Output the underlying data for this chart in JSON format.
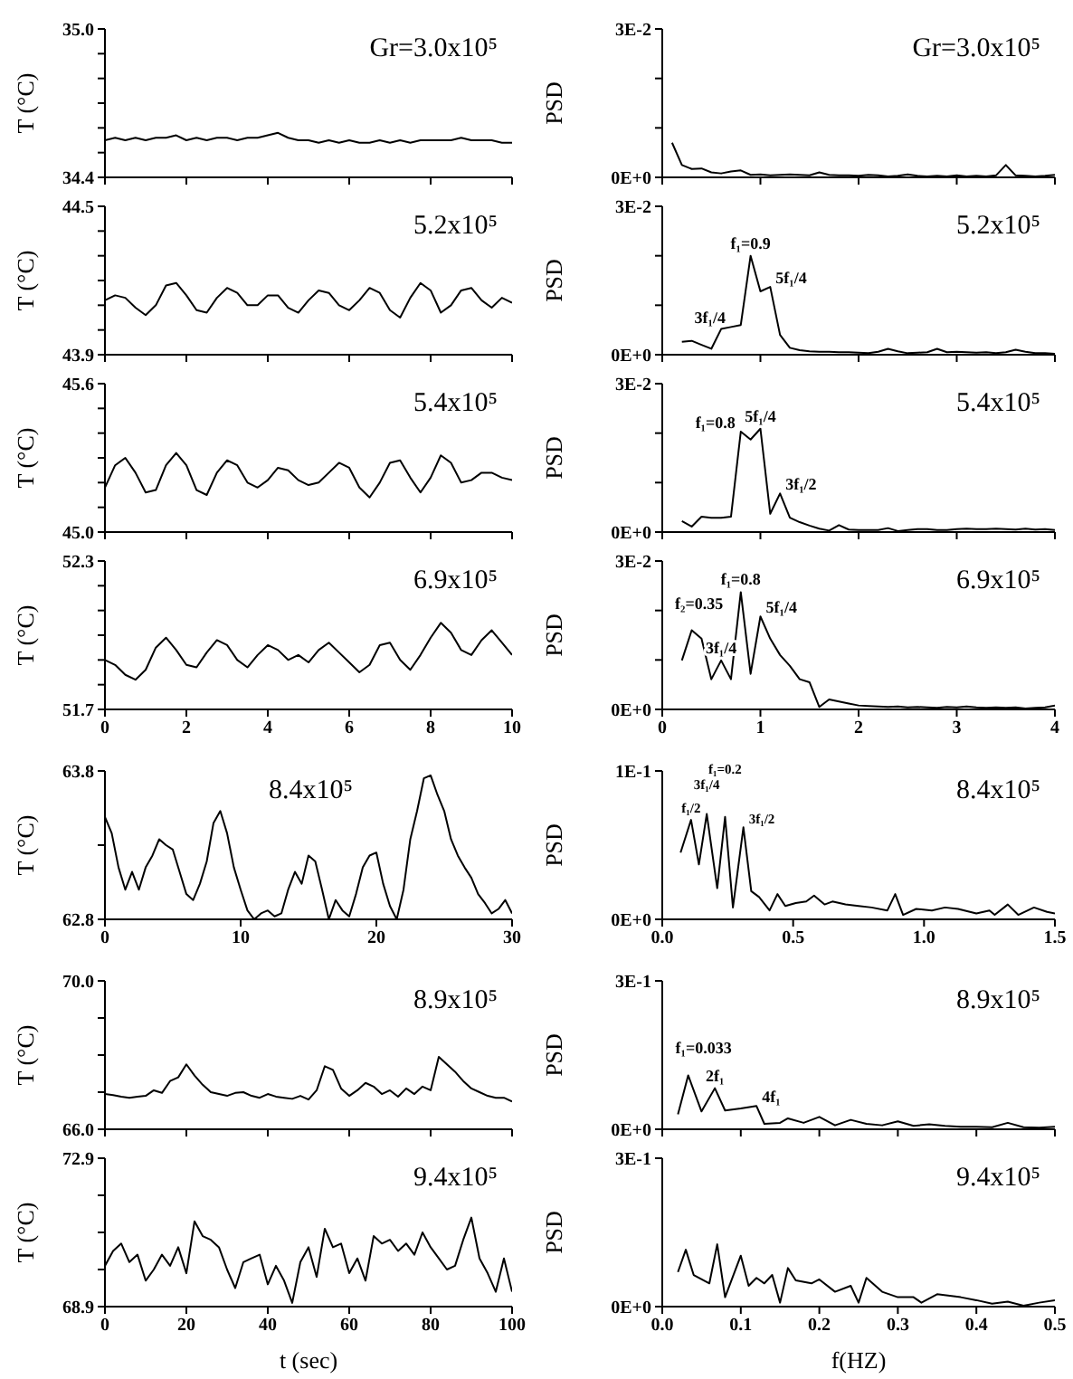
{
  "chart_data": [
    {
      "type": "line",
      "ylabel": "T (°C)",
      "annotations": [
        "Gr=3.0x10⁵"
      ],
      "xlim": [
        0,
        10
      ],
      "xticks": [
        0,
        2,
        4,
        6,
        8,
        10
      ],
      "ylim": [
        34.4,
        35
      ],
      "yticks": [
        {
          "value": 34.4,
          "label": "34.4"
        },
        {
          "value": 34.5,
          "label": null
        },
        {
          "value": 34.6,
          "label": null
        },
        {
          "value": 34.7,
          "label": null
        },
        {
          "value": 34.8,
          "label": null
        },
        {
          "value": 34.9,
          "label": null
        },
        {
          "value": 35,
          "label": "35.0"
        }
      ],
      "tick_labels": "y",
      "x": [
        0,
        0.25,
        0.5,
        0.75,
        1,
        1.25,
        1.5,
        1.75,
        2,
        2.25,
        2.5,
        2.75,
        3,
        3.25,
        3.5,
        3.75,
        4,
        4.25,
        4.5,
        4.75,
        5,
        5.25,
        5.5,
        5.75,
        6,
        6.25,
        6.5,
        6.75,
        7,
        7.25,
        7.5,
        7.75,
        8,
        8.25,
        8.5,
        8.75,
        9,
        9.25,
        9.5,
        9.75,
        10
      ],
      "series": [
        {
          "color": "#000000",
          "values": [
            34.55,
            34.56,
            34.55,
            34.56,
            34.55,
            34.56,
            34.56,
            34.57,
            34.55,
            34.56,
            34.55,
            34.56,
            34.56,
            34.55,
            34.56,
            34.56,
            34.57,
            34.58,
            34.56,
            34.55,
            34.55,
            34.54,
            34.55,
            34.54,
            34.55,
            34.54,
            34.54,
            34.55,
            34.54,
            34.55,
            34.54,
            34.55,
            34.55,
            34.55,
            34.55,
            34.56,
            34.55,
            34.55,
            34.55,
            34.54,
            34.54
          ]
        }
      ]
    },
    {
      "type": "line",
      "ylabel": "PSD",
      "annotations": [
        "Gr=3.0x10⁵"
      ],
      "xlim": [
        0,
        4
      ],
      "xticks": [
        0,
        1,
        2,
        3,
        4
      ],
      "ylim": [
        0,
        0.03
      ],
      "yticks": [
        {
          "value": 0,
          "label": "0E+0"
        },
        {
          "value": 0.01,
          "label": null
        },
        {
          "value": 0.02,
          "label": null
        },
        {
          "value": 0.03,
          "label": "3E-2"
        }
      ],
      "tick_labels": "y",
      "x": [
        0.1,
        0.2,
        0.3,
        0.4,
        0.5,
        0.6,
        0.7,
        0.8,
        0.9,
        1,
        1.1,
        1.2,
        1.3,
        1.4,
        1.5,
        1.6,
        1.7,
        1.8,
        1.9,
        2,
        2.1,
        2.2,
        2.3,
        2.4,
        2.5,
        2.6,
        2.7,
        2.8,
        2.9,
        3,
        3.1,
        3.2,
        3.3,
        3.4,
        3.5,
        3.6,
        3.7,
        3.8,
        3.9,
        4
      ],
      "series": [
        {
          "color": "#000000",
          "values": [
            0.007,
            0.0025,
            0.0017,
            0.0018,
            0.001,
            0.0008,
            0.0012,
            0.0014,
            0.0005,
            0.0006,
            0.0004,
            0.0005,
            0.0006,
            0.0005,
            0.0004,
            0.001,
            0.0005,
            0.0004,
            0.0004,
            0.0003,
            0.0005,
            0.0004,
            0.0002,
            0.0003,
            0.0006,
            0.0003,
            0.0002,
            0.0003,
            0.0002,
            0.0004,
            0.0002,
            0.0003,
            0.0002,
            0.0004,
            0.0025,
            0.0004,
            0.0003,
            0.0002,
            0.0003,
            0.0005
          ]
        }
      ]
    },
    {
      "type": "line",
      "ylabel": "T (°C)",
      "annotations": [
        "5.2x10⁵"
      ],
      "xlim": [
        0,
        10
      ],
      "xticks": [
        0,
        2,
        4,
        6,
        8,
        10
      ],
      "ylim": [
        43.9,
        44.5
      ],
      "yticks": [
        {
          "value": 43.9,
          "label": "43.9"
        },
        {
          "value": 44,
          "label": null
        },
        {
          "value": 44.1,
          "label": null
        },
        {
          "value": 44.2,
          "label": null
        },
        {
          "value": 44.3,
          "label": null
        },
        {
          "value": 44.4,
          "label": null
        },
        {
          "value": 44.5,
          "label": "44.5"
        }
      ],
      "tick_labels": "y",
      "x": [
        0,
        0.25,
        0.5,
        0.75,
        1,
        1.25,
        1.5,
        1.75,
        2,
        2.25,
        2.5,
        2.75,
        3,
        3.25,
        3.5,
        3.75,
        4,
        4.25,
        4.5,
        4.75,
        5,
        5.25,
        5.5,
        5.75,
        6,
        6.25,
        6.5,
        6.75,
        7,
        7.25,
        7.5,
        7.75,
        8,
        8.25,
        8.5,
        8.75,
        9,
        9.25,
        9.5,
        9.75,
        10
      ],
      "series": [
        {
          "color": "#000000",
          "values": [
            44.12,
            44.14,
            44.13,
            44.09,
            44.06,
            44.1,
            44.18,
            44.19,
            44.14,
            44.08,
            44.07,
            44.13,
            44.17,
            44.15,
            44.1,
            44.1,
            44.14,
            44.14,
            44.09,
            44.07,
            44.12,
            44.16,
            44.15,
            44.1,
            44.08,
            44.12,
            44.17,
            44.15,
            44.08,
            44.05,
            44.13,
            44.19,
            44.16,
            44.07,
            44.1,
            44.16,
            44.17,
            44.12,
            44.09,
            44.13,
            44.11
          ]
        }
      ]
    },
    {
      "type": "line",
      "ylabel": "PSD",
      "annotations": [
        "5.2x10⁵",
        {
          "text": "3f₁/4",
          "x": 0.7,
          "y": 0.0056
        },
        {
          "text": "f₁=0.9",
          "x": 0.9,
          "y": 0.02
        },
        {
          "text": "5f₁/4",
          "x": 1.1,
          "y": 0.0137
        }
      ],
      "xlim": [
        0,
        4
      ],
      "xticks": [
        0,
        1,
        2,
        3,
        4
      ],
      "ylim": [
        0,
        0.03
      ],
      "yticks": [
        {
          "value": 0,
          "label": "0E+0"
        },
        {
          "value": 0.01,
          "label": null
        },
        {
          "value": 0.02,
          "label": null
        },
        {
          "value": 0.03,
          "label": "3E-2"
        }
      ],
      "tick_labels": "y",
      "x": [
        0.2,
        0.3,
        0.4,
        0.5,
        0.6,
        0.7,
        0.8,
        0.9,
        1,
        1.1,
        1.2,
        1.3,
        1.4,
        1.5,
        1.6,
        1.7,
        1.8,
        1.9,
        2,
        2.1,
        2.2,
        2.3,
        2.4,
        2.5,
        2.6,
        2.7,
        2.8,
        2.9,
        3,
        3.1,
        3.2,
        3.3,
        3.4,
        3.5,
        3.6,
        3.7,
        3.8,
        3.9,
        4
      ],
      "series": [
        {
          "color": "#000000",
          "values": [
            0.0026,
            0.0028,
            0.002,
            0.0012,
            0.0052,
            0.0056,
            0.006,
            0.02,
            0.0128,
            0.0137,
            0.004,
            0.0014,
            0.0009,
            0.0007,
            0.0006,
            0.0006,
            0.0005,
            0.0005,
            0.0004,
            0.0003,
            0.0006,
            0.0012,
            0.0007,
            0.0003,
            0.0004,
            0.0005,
            0.0012,
            0.0005,
            0.0006,
            0.0005,
            0.0004,
            0.0005,
            0.0003,
            0.0005,
            0.001,
            0.0006,
            0.0003,
            0.0003,
            0.0002
          ]
        }
      ]
    },
    {
      "type": "line",
      "ylabel": "T (°C)",
      "annotations": [
        "5.4x10⁵"
      ],
      "xlim": [
        0,
        10
      ],
      "xticks": [
        0,
        2,
        4,
        6,
        8,
        10
      ],
      "ylim": [
        45,
        45.6
      ],
      "yticks": [
        {
          "value": 45,
          "label": "45.0"
        },
        {
          "value": 45.1,
          "label": null
        },
        {
          "value": 45.2,
          "label": null
        },
        {
          "value": 45.3,
          "label": null
        },
        {
          "value": 45.4,
          "label": null
        },
        {
          "value": 45.5,
          "label": null
        },
        {
          "value": 45.6,
          "label": "45.6"
        }
      ],
      "tick_labels": "y",
      "x": [
        0,
        0.25,
        0.5,
        0.75,
        1,
        1.25,
        1.5,
        1.75,
        2,
        2.25,
        2.5,
        2.75,
        3,
        3.25,
        3.5,
        3.75,
        4,
        4.25,
        4.5,
        4.75,
        5,
        5.25,
        5.5,
        5.75,
        6,
        6.25,
        6.5,
        6.75,
        7,
        7.25,
        7.5,
        7.75,
        8,
        8.25,
        8.5,
        8.75,
        9,
        9.25,
        9.5,
        9.75,
        10
      ],
      "series": [
        {
          "color": "#000000",
          "values": [
            45.18,
            45.27,
            45.3,
            45.24,
            45.16,
            45.17,
            45.27,
            45.32,
            45.27,
            45.17,
            45.15,
            45.24,
            45.29,
            45.27,
            45.2,
            45.18,
            45.21,
            45.26,
            45.25,
            45.21,
            45.19,
            45.2,
            45.24,
            45.28,
            45.26,
            45.18,
            45.14,
            45.2,
            45.28,
            45.29,
            45.22,
            45.16,
            45.22,
            45.31,
            45.28,
            45.2,
            45.21,
            45.24,
            45.24,
            45.22,
            45.21
          ]
        }
      ]
    },
    {
      "type": "line",
      "ylabel": "PSD",
      "annotations": [
        "5.4x10⁵",
        {
          "text": "f₁=0.8",
          "x": 0.8,
          "y": 0.0203
        },
        {
          "text": "5f₁/4",
          "x": 1,
          "y": 0.0209
        },
        {
          "text": "3f₁/2",
          "x": 1.2,
          "y": 0.0078
        }
      ],
      "xlim": [
        0,
        4
      ],
      "xticks": [
        0,
        1,
        2,
        3,
        4
      ],
      "ylim": [
        0,
        0.03
      ],
      "yticks": [
        {
          "value": 0,
          "label": "0E+0"
        },
        {
          "value": 0.01,
          "label": null
        },
        {
          "value": 0.02,
          "label": null
        },
        {
          "value": 0.03,
          "label": "3E-2"
        }
      ],
      "tick_labels": "y",
      "x": [
        0.2,
        0.3,
        0.4,
        0.5,
        0.6,
        0.7,
        0.8,
        0.9,
        1,
        1.1,
        1.2,
        1.3,
        1.4,
        1.5,
        1.6,
        1.7,
        1.8,
        1.9,
        2,
        2.1,
        2.2,
        2.3,
        2.4,
        2.5,
        2.6,
        2.7,
        2.8,
        2.9,
        3,
        3.1,
        3.2,
        3.3,
        3.4,
        3.5,
        3.6,
        3.7,
        3.8,
        3.9,
        4
      ],
      "series": [
        {
          "color": "#000000",
          "values": [
            0.0022,
            0.0011,
            0.0031,
            0.0029,
            0.0029,
            0.0031,
            0.0203,
            0.0187,
            0.0209,
            0.0037,
            0.0078,
            0.0029,
            0.002,
            0.0013,
            0.0007,
            0.0003,
            0.0014,
            0.0005,
            0.0004,
            0.0004,
            0.0004,
            0.0008,
            0.0002,
            0.0004,
            0.0006,
            0.0006,
            0.0004,
            0.0004,
            0.0006,
            0.0007,
            0.0006,
            0.0006,
            0.0007,
            0.0006,
            0.0005,
            0.0007,
            0.0005,
            0.0006,
            0.0004
          ]
        }
      ]
    },
    {
      "type": "line",
      "ylabel": "T (°C)",
      "annotations": [
        "6.9x10⁵"
      ],
      "xlim": [
        0,
        10
      ],
      "xticks": [
        0,
        2,
        4,
        6,
        8,
        10
      ],
      "ylim": [
        51.7,
        52.3
      ],
      "yticks": [
        {
          "value": 51.7,
          "label": "51.7"
        },
        {
          "value": 51.8,
          "label": null
        },
        {
          "value": 51.9,
          "label": null
        },
        {
          "value": 52,
          "label": null
        },
        {
          "value": 52.1,
          "label": null
        },
        {
          "value": 52.2,
          "label": null
        },
        {
          "value": 52.3,
          "label": "52.3"
        }
      ],
      "x": [
        0,
        0.25,
        0.5,
        0.75,
        1,
        1.25,
        1.5,
        1.75,
        2,
        2.25,
        2.5,
        2.75,
        3,
        3.25,
        3.5,
        3.75,
        4,
        4.25,
        4.5,
        4.75,
        5,
        5.25,
        5.5,
        5.75,
        6,
        6.25,
        6.5,
        6.75,
        7,
        7.25,
        7.5,
        7.75,
        8,
        8.25,
        8.5,
        8.75,
        9,
        9.25,
        9.5,
        9.75,
        10
      ],
      "series": [
        {
          "color": "#000000",
          "values": [
            51.9,
            51.88,
            51.84,
            51.82,
            51.86,
            51.95,
            51.99,
            51.94,
            51.88,
            51.87,
            51.93,
            51.98,
            51.96,
            51.9,
            51.87,
            51.92,
            51.96,
            51.94,
            51.9,
            51.92,
            51.89,
            51.94,
            51.97,
            51.93,
            51.89,
            51.85,
            51.88,
            51.96,
            51.97,
            51.9,
            51.86,
            51.92,
            51.99,
            52.05,
            52.01,
            51.94,
            51.92,
            51.98,
            52.02,
            51.97,
            51.92
          ]
        }
      ]
    },
    {
      "type": "line",
      "ylabel": "PSD",
      "annotations": [
        "6.9x10⁵",
        {
          "text": "f₂=0.35",
          "x": 0.3,
          "y": 0.016
        },
        {
          "text": "3f₁/4",
          "x": 0.6,
          "y": 0.0099
        },
        {
          "text": "f₁=0.8",
          "x": 0.8,
          "y": 0.0237
        },
        {
          "text": "5f₁/4",
          "x": 1,
          "y": 0.0188
        }
      ],
      "xlim": [
        0,
        4
      ],
      "xticks": [
        0,
        1,
        2,
        3,
        4
      ],
      "ylim": [
        0,
        0.03
      ],
      "yticks": [
        {
          "value": 0,
          "label": "0E+0"
        },
        {
          "value": 0.01,
          "label": null
        },
        {
          "value": 0.02,
          "label": null
        },
        {
          "value": 0.03,
          "label": "3E-2"
        }
      ],
      "x": [
        0.2,
        0.3,
        0.4,
        0.5,
        0.6,
        0.7,
        0.8,
        0.9,
        1,
        1.1,
        1.2,
        1.3,
        1.4,
        1.5,
        1.6,
        1.7,
        1.8,
        1.9,
        2,
        2.1,
        2.2,
        2.3,
        2.4,
        2.5,
        2.6,
        2.7,
        2.8,
        2.9,
        3,
        3.1,
        3.2,
        3.3,
        3.4,
        3.5,
        3.6,
        3.7,
        3.8,
        3.9,
        4
      ],
      "series": [
        {
          "color": "#000000",
          "values": [
            0.0099,
            0.016,
            0.0143,
            0.0061,
            0.0099,
            0.0061,
            0.0237,
            0.0072,
            0.0188,
            0.0143,
            0.011,
            0.0088,
            0.0061,
            0.0055,
            0.0005,
            0.002,
            0.0016,
            0.0012,
            0.0008,
            0.0007,
            0.0006,
            0.0005,
            0.0006,
            0.0004,
            0.0005,
            0.0004,
            0.0003,
            0.0005,
            0.0004,
            0.0006,
            0.0004,
            0.0003,
            0.0004,
            0.0003,
            0.0004,
            0.0002,
            0.0003,
            0.0004,
            0.0008
          ]
        }
      ]
    },
    {
      "type": "line",
      "ylabel": "T (°C)",
      "annotations": [
        "8.4x10⁵"
      ],
      "xlim": [
        0,
        30
      ],
      "xticks": [
        0,
        10,
        20,
        30
      ],
      "ylim": [
        62.8,
        63.8
      ],
      "yticks": [
        {
          "value": 62.8,
          "label": "62.8"
        },
        {
          "value": 63.3,
          "label": null
        },
        {
          "value": 63.8,
          "label": "63.8"
        }
      ],
      "x": [
        0,
        0.5,
        1,
        1.5,
        2,
        2.5,
        3,
        3.5,
        4,
        4.5,
        5,
        5.5,
        6,
        6.5,
        7,
        7.5,
        8,
        8.5,
        9,
        9.5,
        10,
        10.5,
        11,
        11.5,
        12,
        12.5,
        13,
        13.5,
        14,
        14.5,
        15,
        15.5,
        16,
        16.5,
        17,
        17.5,
        18,
        18.5,
        19,
        19.5,
        20,
        20.5,
        21,
        21.5,
        22,
        22.5,
        23,
        23.5,
        24,
        24.5,
        25,
        25.5,
        26,
        26.5,
        27,
        27.5,
        28,
        28.5,
        29,
        29.5,
        30
      ],
      "series": [
        {
          "color": "#000000",
          "values": [
            63.49,
            63.38,
            63.15,
            63.0,
            63.12,
            63.0,
            63.15,
            63.23,
            63.34,
            63.3,
            63.27,
            63.12,
            62.97,
            62.93,
            63.04,
            63.19,
            63.45,
            63.53,
            63.38,
            63.15,
            63.0,
            62.86,
            62.8,
            62.84,
            62.86,
            62.82,
            62.84,
            63.0,
            63.12,
            63.04,
            63.23,
            63.19,
            63.0,
            62.8,
            62.93,
            62.86,
            62.82,
            62.97,
            63.15,
            63.23,
            63.25,
            63.04,
            62.89,
            62.8,
            63.0,
            63.34,
            63.53,
            63.75,
            63.77,
            63.64,
            63.53,
            63.34,
            63.23,
            63.15,
            63.08,
            62.97,
            62.91,
            62.84,
            62.87,
            62.93,
            62.84
          ]
        }
      ]
    },
    {
      "type": "line",
      "ylabel": "PSD",
      "annotations": [
        "8.4x10⁵",
        {
          "text": "f₁/2",
          "x": 0.11,
          "y": 0.067
        },
        {
          "text": "3f₁/4",
          "x": 0.17,
          "y": 0.071
        },
        {
          "text": "f₁=0.2",
          "x": 0.24,
          "y": 0.069
        },
        {
          "text": "3f₁/2",
          "x": 0.31,
          "y": 0.062
        }
      ],
      "xlim": [
        0,
        1.5
      ],
      "xticks": [
        {
          "value": 0,
          "label": "0.0"
        },
        {
          "value": 0.5,
          "label": "0.5"
        },
        {
          "value": 1,
          "label": "1.0"
        },
        {
          "value": 1.5,
          "label": "1.5"
        }
      ],
      "ylim": [
        0,
        0.1
      ],
      "yticks": [
        {
          "value": 0,
          "label": "0E+0"
        },
        {
          "value": 0.1,
          "label": "1E-1"
        }
      ],
      "x": [
        0.07,
        0.11,
        0.14,
        0.17,
        0.21,
        0.24,
        0.27,
        0.31,
        0.34,
        0.37,
        0.41,
        0.44,
        0.47,
        0.51,
        0.55,
        0.58,
        0.62,
        0.65,
        0.7,
        0.75,
        0.8,
        0.86,
        0.89,
        0.92,
        0.97,
        1.03,
        1.08,
        1.13,
        1.2,
        1.25,
        1.27,
        1.32,
        1.36,
        1.42,
        1.47,
        1.5
      ],
      "series": [
        {
          "color": "#000000",
          "values": [
            0.045,
            0.067,
            0.037,
            0.071,
            0.021,
            0.069,
            0.008,
            0.062,
            0.019,
            0.015,
            0.006,
            0.017,
            0.009,
            0.011,
            0.012,
            0.016,
            0.01,
            0.012,
            0.01,
            0.009,
            0.008,
            0.006,
            0.017,
            0.003,
            0.007,
            0.006,
            0.008,
            0.007,
            0.004,
            0.006,
            0.003,
            0.01,
            0.003,
            0.008,
            0.005,
            0.004
          ]
        }
      ]
    },
    {
      "type": "line",
      "ylabel": "T (°C)",
      "annotations": [
        "8.9x10⁵"
      ],
      "xlim": [
        0,
        100
      ],
      "xticks": [
        0,
        20,
        40,
        60,
        80,
        100
      ],
      "ylim": [
        66,
        70
      ],
      "yticks": [
        {
          "value": 66,
          "label": "66.0"
        },
        {
          "value": 67,
          "label": null
        },
        {
          "value": 68,
          "label": null
        },
        {
          "value": 69,
          "label": null
        },
        {
          "value": 70,
          "label": "70.0"
        }
      ],
      "tick_labels": "y",
      "x": [
        0,
        2,
        4,
        6,
        8,
        10,
        12,
        14,
        16,
        18,
        20,
        22,
        24,
        26,
        28,
        30,
        32,
        34,
        36,
        38,
        40,
        42,
        44,
        46,
        48,
        50,
        52,
        54,
        56,
        58,
        60,
        62,
        64,
        66,
        68,
        70,
        72,
        74,
        76,
        78,
        80,
        82,
        84,
        86,
        88,
        90,
        92,
        94,
        96,
        98,
        100
      ],
      "series": [
        {
          "color": "#000000",
          "values": [
            66.95,
            66.92,
            66.88,
            66.85,
            66.88,
            66.9,
            67.05,
            66.98,
            67.3,
            67.4,
            67.75,
            67.45,
            67.2,
            67.0,
            66.95,
            66.9,
            66.98,
            67.0,
            66.9,
            66.85,
            66.95,
            66.88,
            66.85,
            66.82,
            66.9,
            66.8,
            67.05,
            67.7,
            67.6,
            67.1,
            66.9,
            67.05,
            67.25,
            67.15,
            66.95,
            67.05,
            66.88,
            67.1,
            66.95,
            67.15,
            67.05,
            67.95,
            67.75,
            67.55,
            67.3,
            67.1,
            67.0,
            66.9,
            66.85,
            66.85,
            66.75
          ]
        }
      ]
    },
    {
      "type": "line",
      "ylabel": "PSD",
      "annotations": [
        "8.9x10⁵",
        {
          "text": "f₁=0.033",
          "x": 0.033,
          "y": 0.109
        },
        {
          "text": "2f₁",
          "x": 0.067,
          "y": 0.083
        },
        {
          "text": "4f₁",
          "x": 0.12,
          "y": 0.047
        }
      ],
      "xlim": [
        0,
        0.5
      ],
      "xticks": [
        0,
        0.1,
        0.2,
        0.3,
        0.4,
        0.5
      ],
      "ylim": [
        0,
        0.3
      ],
      "yticks": [
        {
          "value": 0,
          "label": "0E+0"
        },
        {
          "value": 0.3,
          "label": "3E-1"
        }
      ],
      "tick_labels": "y",
      "x": [
        0.02,
        0.033,
        0.05,
        0.067,
        0.08,
        0.1,
        0.12,
        0.13,
        0.15,
        0.16,
        0.18,
        0.2,
        0.22,
        0.24,
        0.26,
        0.28,
        0.3,
        0.32,
        0.34,
        0.36,
        0.38,
        0.4,
        0.42,
        0.44,
        0.46,
        0.48,
        0.5
      ],
      "series": [
        {
          "color": "#000000",
          "values": [
            0.03,
            0.109,
            0.036,
            0.083,
            0.038,
            0.042,
            0.047,
            0.011,
            0.013,
            0.022,
            0.013,
            0.025,
            0.008,
            0.019,
            0.011,
            0.008,
            0.016,
            0.007,
            0.01,
            0.007,
            0.005,
            0.005,
            0.004,
            0.013,
            0.004,
            0.003,
            0.005
          ]
        }
      ]
    },
    {
      "type": "line",
      "ylabel": "T (°C)",
      "xlabel": "t (sec)",
      "annotations": [
        "9.4x10⁵"
      ],
      "xlim": [
        0,
        100
      ],
      "xticks": [
        0,
        20,
        40,
        60,
        80,
        100
      ],
      "ylim": [
        68.9,
        72.9
      ],
      "yticks": [
        {
          "value": 68.9,
          "label": "68.9"
        },
        {
          "value": 69.9,
          "label": null
        },
        {
          "value": 70.9,
          "label": null
        },
        {
          "value": 71.9,
          "label": null
        },
        {
          "value": 72.9,
          "label": "72.9"
        }
      ],
      "x": [
        0,
        2,
        4,
        6,
        8,
        10,
        12,
        14,
        16,
        18,
        20,
        22,
        24,
        26,
        28,
        30,
        32,
        34,
        36,
        38,
        40,
        42,
        44,
        46,
        48,
        50,
        52,
        54,
        56,
        58,
        60,
        62,
        64,
        66,
        68,
        70,
        72,
        74,
        76,
        78,
        80,
        82,
        84,
        86,
        88,
        90,
        92,
        94,
        96,
        98,
        100
      ],
      "series": [
        {
          "color": "#000000",
          "values": [
            70.0,
            70.4,
            70.6,
            70.1,
            70.3,
            69.6,
            69.9,
            70.3,
            70.0,
            70.5,
            69.8,
            71.2,
            70.8,
            70.7,
            70.5,
            69.9,
            69.4,
            70.1,
            70.2,
            70.3,
            69.5,
            70.0,
            69.6,
            69.0,
            70.1,
            70.5,
            69.7,
            71.0,
            70.5,
            70.6,
            69.8,
            70.2,
            69.6,
            70.8,
            70.6,
            70.7,
            70.4,
            70.6,
            70.3,
            70.9,
            70.5,
            70.2,
            69.9,
            70.0,
            70.7,
            71.3,
            70.2,
            69.8,
            69.3,
            70.2,
            69.3
          ]
        }
      ]
    },
    {
      "type": "line",
      "ylabel": "PSD",
      "xlabel": "f(HZ)",
      "annotations": [
        "9.4x10⁵"
      ],
      "xlim": [
        0,
        0.5
      ],
      "xticks": [
        {
          "value": 0,
          "label": "0.0"
        },
        {
          "value": 0.1,
          "label": "0.1"
        },
        {
          "value": 0.2,
          "label": "0.2"
        },
        {
          "value": 0.3,
          "label": "0.3"
        },
        {
          "value": 0.4,
          "label": "0.4"
        },
        {
          "value": 0.5,
          "label": "0.5"
        }
      ],
      "ylim": [
        0,
        0.3
      ],
      "yticks": [
        {
          "value": 0,
          "label": "0E+0"
        },
        {
          "value": 0.3,
          "label": "3E-1"
        }
      ],
      "x": [
        0.02,
        0.03,
        0.04,
        0.06,
        0.07,
        0.08,
        0.1,
        0.11,
        0.12,
        0.13,
        0.14,
        0.15,
        0.16,
        0.17,
        0.19,
        0.2,
        0.22,
        0.24,
        0.25,
        0.26,
        0.28,
        0.3,
        0.32,
        0.33,
        0.35,
        0.38,
        0.4,
        0.42,
        0.44,
        0.46,
        0.48,
        0.5
      ],
      "series": [
        {
          "color": "#000000",
          "values": [
            0.07,
            0.115,
            0.064,
            0.047,
            0.126,
            0.019,
            0.103,
            0.042,
            0.058,
            0.047,
            0.064,
            0.008,
            0.078,
            0.053,
            0.047,
            0.055,
            0.03,
            0.042,
            0.008,
            0.058,
            0.03,
            0.019,
            0.019,
            0.008,
            0.025,
            0.019,
            0.013,
            0.006,
            0.01,
            0.002,
            0.008,
            0.013
          ]
        }
      ]
    }
  ]
}
